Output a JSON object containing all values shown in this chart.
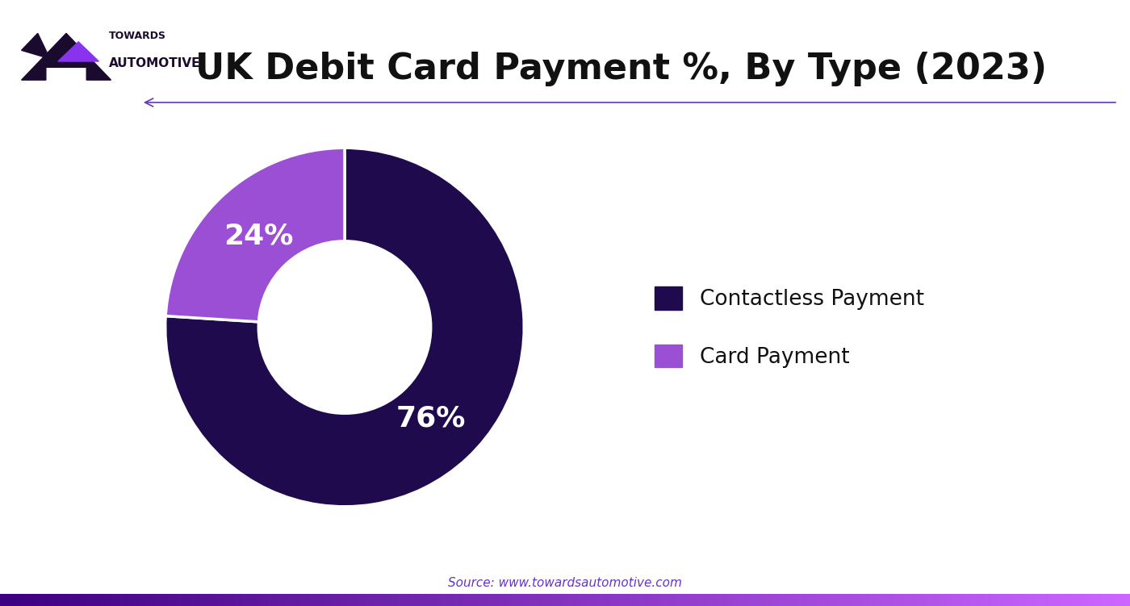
{
  "title": "UK Debit Card Payment %, By Type (2023)",
  "slices": [
    76,
    24
  ],
  "colors": [
    "#1f0a4e",
    "#9b4fd4"
  ],
  "pct_labels": [
    "76%",
    "24%"
  ],
  "pct_colors": [
    "white",
    "white"
  ],
  "legend_labels": [
    "Contactless Payment",
    "Card Payment"
  ],
  "legend_colors": [
    "#1f0a4e",
    "#9b4fd4"
  ],
  "source_text": "Source: www.towardsautomotive.com",
  "source_color": "#6633cc",
  "bg_color": "#ffffff",
  "title_fontsize": 32,
  "title_color": "#111111",
  "arrow_color": "#6633bb",
  "bar_bottom_left": "#3d0080",
  "bar_bottom_right": "#cc66ff",
  "start_angle": 90,
  "logo_text1": "TOWARDS",
  "logo_text2": "AUTOMOTIVE",
  "logo_color": "#1a0a2e",
  "logo_accent": "#8833ee"
}
